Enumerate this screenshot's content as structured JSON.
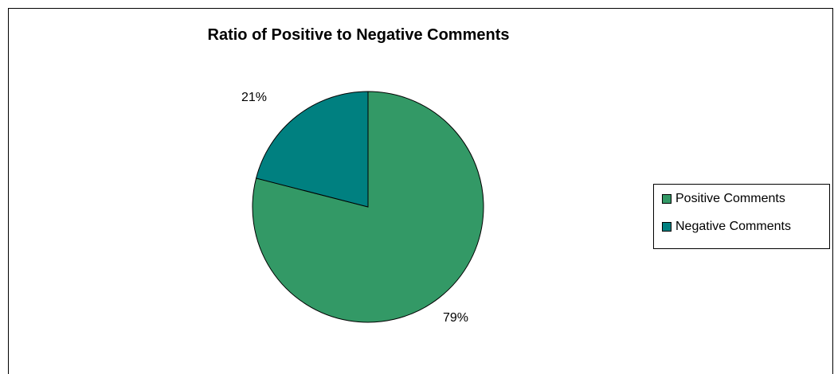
{
  "chart_data": {
    "type": "pie",
    "title": "Ratio of Positive to Negative Comments",
    "slices": [
      {
        "name": "Positive Comments",
        "value": 79,
        "label": "79%",
        "color": "#339966"
      },
      {
        "name": "Negative Comments",
        "value": 21,
        "label": "21%",
        "color": "#008080"
      }
    ],
    "legend_position": "right"
  },
  "legend": {
    "items": [
      "Positive Comments",
      "Negative Comments"
    ]
  }
}
